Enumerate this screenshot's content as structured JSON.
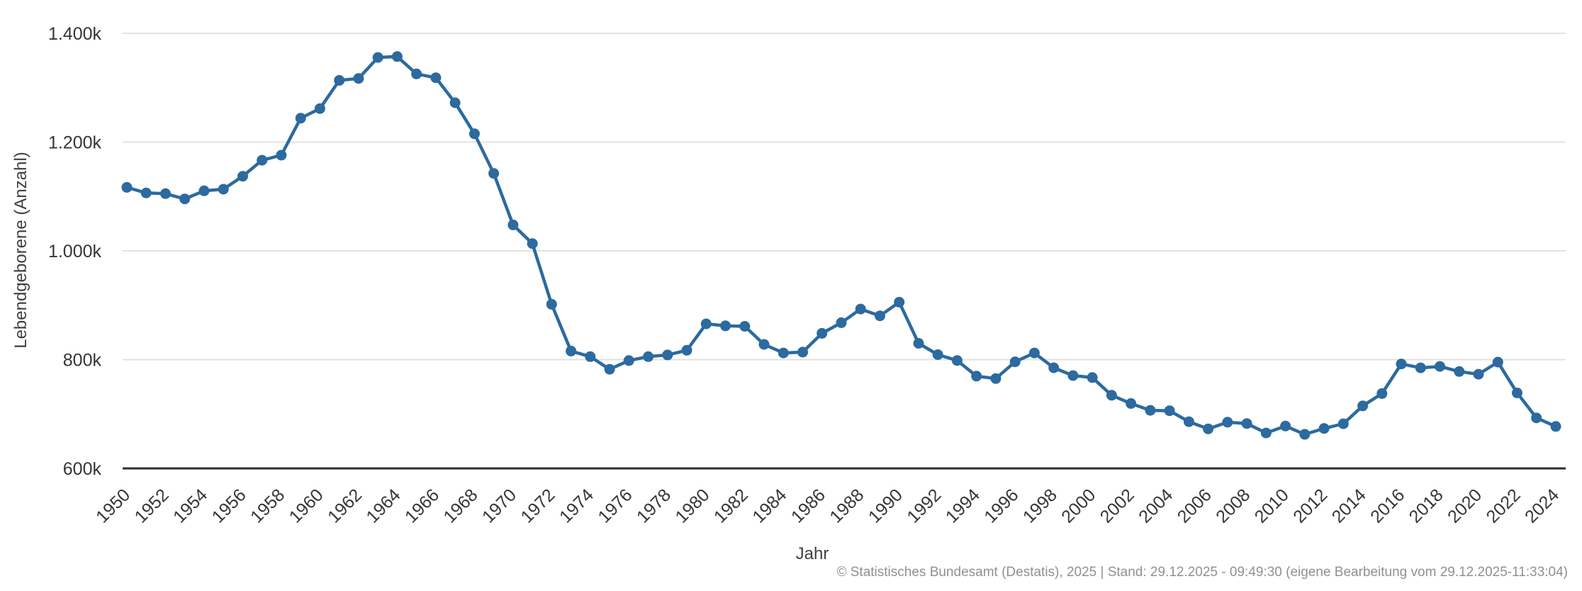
{
  "chart_data": {
    "type": "line",
    "title": "",
    "xlabel": "Jahr",
    "ylabel": "Lebendgeborene (Anzahl)",
    "unit": "k",
    "grid": true,
    "legend": "none",
    "ylim": [
      600,
      1400
    ],
    "xlim": [
      1950,
      2024
    ],
    "x_tick_step": 2,
    "y_ticks": {
      "values": [
        600,
        800,
        1000,
        1200,
        1400
      ],
      "labels": [
        "600k",
        "800k",
        "1.000k",
        "1.200k",
        "1.400k"
      ]
    },
    "x": [
      1950,
      1951,
      1952,
      1953,
      1954,
      1955,
      1956,
      1957,
      1958,
      1959,
      1960,
      1961,
      1962,
      1963,
      1964,
      1965,
      1966,
      1967,
      1968,
      1969,
      1970,
      1971,
      1972,
      1973,
      1974,
      1975,
      1976,
      1977,
      1978,
      1979,
      1980,
      1981,
      1982,
      1983,
      1984,
      1985,
      1986,
      1987,
      1988,
      1989,
      1990,
      1991,
      1992,
      1993,
      1994,
      1995,
      1996,
      1997,
      1998,
      1999,
      2000,
      2001,
      2002,
      2003,
      2004,
      2005,
      2006,
      2007,
      2008,
      2009,
      2010,
      2011,
      2012,
      2013,
      2014,
      2015,
      2016,
      2017,
      2018,
      2019,
      2020,
      2021,
      2022,
      2023,
      2024
    ],
    "series": [
      {
        "name": "Lebendgeborene (Anzahl), in Tausend",
        "values": [
          1116.7,
          1106.4,
          1105.1,
          1095.5,
          1110.4,
          1113.4,
          1137.2,
          1166.6,
          1175.9,
          1243.9,
          1261.6,
          1313.5,
          1317.0,
          1355.6,
          1357.3,
          1325.4,
          1318.3,
          1272.3,
          1215.3,
          1142.4,
          1047.7,
          1013.4,
          901.7,
          815.8,
          805.5,
          782.3,
          798.3,
          805.5,
          808.6,
          817.2,
          865.8,
          862.1,
          861.3,
          828.0,
          812.3,
          813.8,
          848.3,
          867.9,
          893.0,
          880.5,
          905.7,
          830.0,
          809.1,
          798.4,
          769.6,
          765.2,
          796.0,
          812.2,
          785.0,
          770.7,
          767.0,
          734.5,
          719.3,
          706.7,
          706.0,
          685.8,
          672.7,
          685.0,
          682.5,
          665.1,
          677.9,
          662.7,
          673.5,
          682.1,
          714.9,
          737.6,
          792.1,
          784.9,
          787.5,
          778.1,
          773.1,
          795.5,
          738.8,
          692.9,
          677.1
        ]
      }
    ]
  },
  "colors": {
    "line": "#2c6a9f",
    "marker": "#2c6a9f",
    "grid": "#e2e2e2",
    "axis_line": "#2e2e2e",
    "tick_label": "#363636",
    "axis_title": "#3f3f3f",
    "footer": "#909090",
    "background": "#ffffff"
  },
  "footer": {
    "source_note": "© Statistisches Bundesamt (Destatis), 2025 | Stand: 29.12.2025 - 09:49:30 (eigene Bearbeitung vom 29.12.2025-11:33:04)"
  }
}
